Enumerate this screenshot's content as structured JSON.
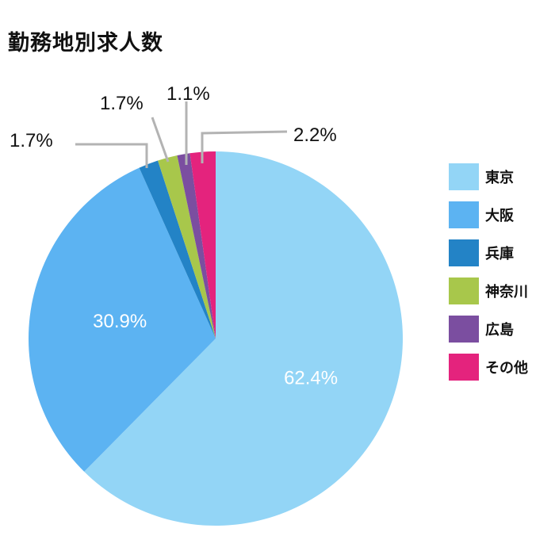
{
  "chart_data": {
    "type": "pie",
    "title": "勤務地別求人数",
    "categories": [
      "東京",
      "大阪",
      "兵庫",
      "神奈川",
      "広島",
      "その他"
    ],
    "values": [
      62.4,
      30.9,
      1.7,
      1.7,
      1.1,
      2.2
    ],
    "value_labels": [
      "62.4%",
      "30.9%",
      "1.7%",
      "1.7%",
      "1.1%",
      "2.2%"
    ],
    "colors": [
      "#93d5f6",
      "#5cb3f2",
      "#2383c6",
      "#a8c74b",
      "#7b4ea0",
      "#e4237d"
    ],
    "legend_position": "right",
    "start": "top, clockwise"
  }
}
